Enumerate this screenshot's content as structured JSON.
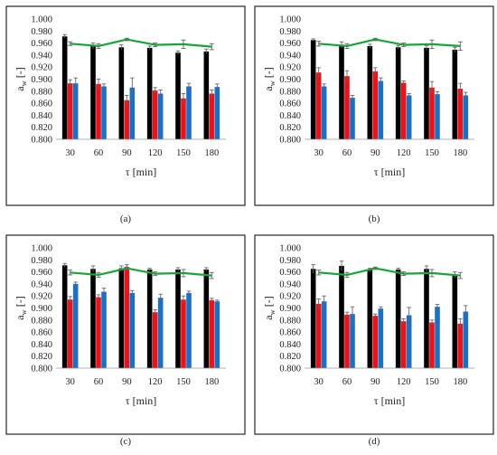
{
  "colors": {
    "series_black": "#000000",
    "series_red": "#e8141b",
    "series_blue": "#1d6fc2",
    "line_green": "#17a43a",
    "error_bar": "#666666",
    "frame": "#262626"
  },
  "chart_data": [
    {
      "type": "bar",
      "caption": "(a)",
      "xlabel": "τ [min]",
      "ylabel_main": "a",
      "ylabel_sub": "w",
      "ylabel_unit": " [-]",
      "categories": [
        "30",
        "60",
        "90",
        "120",
        "150",
        "180"
      ],
      "ylim": [
        0.8,
        1.0
      ],
      "ytick_labels": [
        "0.800",
        "0.820",
        "0.840",
        "0.860",
        "0.880",
        "0.900",
        "0.920",
        "0.940",
        "0.960",
        "0.980",
        "1.000"
      ],
      "series": [
        {
          "values": [
            0.971,
            0.955,
            0.953,
            0.952,
            0.944,
            0.946
          ],
          "errors": [
            0.003,
            0.005,
            0.004,
            0.003,
            0.003,
            0.004
          ]
        },
        {
          "values": [
            0.893,
            0.892,
            0.865,
            0.881,
            0.868,
            0.876
          ],
          "errors": [
            0.006,
            0.008,
            0.008,
            0.005,
            0.008,
            0.006
          ]
        },
        {
          "values": [
            0.893,
            0.888,
            0.886,
            0.876,
            0.888,
            0.887
          ],
          "errors": [
            0.009,
            0.004,
            0.016,
            0.006,
            0.005,
            0.005
          ]
        }
      ],
      "line": {
        "values": [
          0.959,
          0.955,
          0.966,
          0.957,
          0.958,
          0.954
        ],
        "errors": [
          0.003,
          0.004,
          0.002,
          0.003,
          0.007,
          0.005
        ]
      }
    },
    {
      "type": "bar",
      "caption": "(b)",
      "xlabel": "τ [min]",
      "ylabel_main": "a",
      "ylabel_sub": "w",
      "ylabel_unit": " [-]",
      "categories": [
        "30",
        "60",
        "90",
        "120",
        "150",
        "180"
      ],
      "ylim": [
        0.8,
        1.0
      ],
      "ytick_labels": [
        "0.800",
        "0.820",
        "0.840",
        "0.860",
        "0.880",
        "0.900",
        "0.920",
        "0.940",
        "0.960",
        "0.980",
        "1.000"
      ],
      "series": [
        {
          "values": [
            0.965,
            0.957,
            0.955,
            0.953,
            0.952,
            0.949
          ],
          "errors": [
            0.002,
            0.005,
            0.003,
            0.003,
            0.004,
            0.004
          ]
        },
        {
          "values": [
            0.911,
            0.905,
            0.913,
            0.894,
            0.886,
            0.884
          ],
          "errors": [
            0.008,
            0.009,
            0.006,
            0.003,
            0.01,
            0.009
          ]
        },
        {
          "values": [
            0.888,
            0.869,
            0.897,
            0.873,
            0.875,
            0.873
          ],
          "errors": [
            0.004,
            0.004,
            0.005,
            0.003,
            0.004,
            0.005
          ]
        }
      ],
      "line": {
        "values": [
          0.959,
          0.955,
          0.966,
          0.957,
          0.958,
          0.955
        ],
        "errors": [
          0.004,
          0.004,
          0.002,
          0.003,
          0.007,
          0.007
        ]
      }
    },
    {
      "type": "bar",
      "caption": "(c)",
      "xlabel": "τ [min]",
      "ylabel_main": "a",
      "ylabel_sub": "w",
      "ylabel_unit": " [-]",
      "categories": [
        "30",
        "60",
        "90",
        "120",
        "150",
        "180"
      ],
      "ylim": [
        0.8,
        1.0
      ],
      "ytick_labels": [
        "0.800",
        "0.820",
        "0.840",
        "0.860",
        "0.880",
        "0.900",
        "0.920",
        "0.940",
        "0.960",
        "0.980",
        "1.000"
      ],
      "series": [
        {
          "values": [
            0.971,
            0.965,
            0.966,
            0.964,
            0.964,
            0.964
          ],
          "errors": [
            0.003,
            0.005,
            0.004,
            0.002,
            0.003,
            0.003
          ]
        },
        {
          "values": [
            0.914,
            0.918,
            0.968,
            0.893,
            0.914,
            0.913
          ],
          "errors": [
            0.005,
            0.004,
            0.004,
            0.004,
            0.006,
            0.003
          ]
        },
        {
          "values": [
            0.94,
            0.927,
            0.925,
            0.917,
            0.925,
            0.911
          ],
          "errors": [
            0.003,
            0.006,
            0.004,
            0.006,
            0.003,
            0.002
          ]
        }
      ],
      "line": {
        "values": [
          0.959,
          0.955,
          0.966,
          0.957,
          0.958,
          0.954
        ],
        "errors": [
          0.004,
          0.004,
          0.002,
          0.003,
          0.006,
          0.005
        ]
      }
    },
    {
      "type": "bar",
      "caption": "(d)",
      "xlabel": "τ [min]",
      "ylabel_main": "a",
      "ylabel_sub": "w",
      "ylabel_unit": " [-]",
      "categories": [
        "30",
        "60",
        "90",
        "120",
        "150",
        "180"
      ],
      "ylim": [
        0.8,
        1.0
      ],
      "ytick_labels": [
        "0.800",
        "0.820",
        "0.840",
        "0.860",
        "0.880",
        "0.900",
        "0.920",
        "0.940",
        "0.960",
        "0.980",
        "1.000"
      ],
      "series": [
        {
          "values": [
            0.965,
            0.97,
            0.963,
            0.964,
            0.965,
            0.955
          ],
          "errors": [
            0.007,
            0.008,
            0.003,
            0.002,
            0.005,
            0.005
          ]
        },
        {
          "values": [
            0.907,
            0.889,
            0.887,
            0.878,
            0.876,
            0.874
          ],
          "errors": [
            0.008,
            0.004,
            0.003,
            0.004,
            0.004,
            0.008
          ]
        },
        {
          "values": [
            0.911,
            0.89,
            0.899,
            0.888,
            0.902,
            0.894
          ],
          "errors": [
            0.009,
            0.012,
            0.003,
            0.013,
            0.004,
            0.01
          ]
        }
      ],
      "line": {
        "values": [
          0.959,
          0.955,
          0.966,
          0.957,
          0.958,
          0.954
        ],
        "errors": [
          0.004,
          0.004,
          0.002,
          0.003,
          0.006,
          0.005
        ]
      }
    }
  ]
}
